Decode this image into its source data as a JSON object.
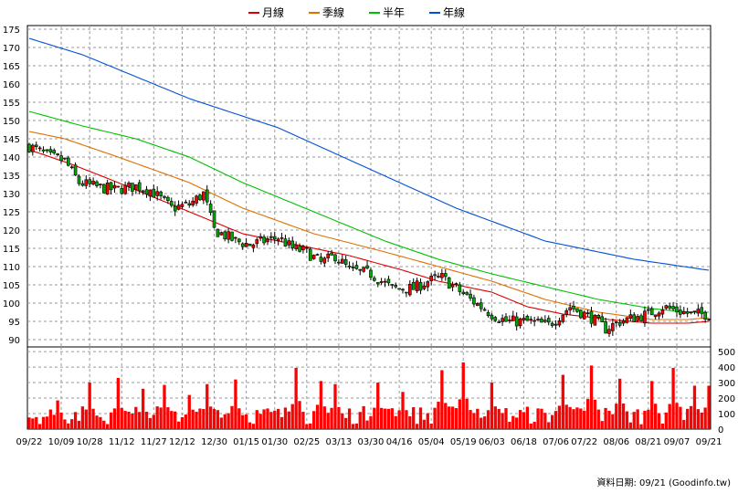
{
  "chart_data": [
    {
      "type": "candlestick",
      "panel": "price",
      "ylim": [
        88,
        176
      ],
      "yticks": [
        90,
        95,
        100,
        105,
        110,
        115,
        120,
        125,
        130,
        135,
        140,
        145,
        150,
        155,
        160,
        165,
        170,
        175
      ],
      "legend": {
        "placement": "top-center",
        "items": [
          {
            "label": "月線",
            "color": "#dd0000"
          },
          {
            "label": "季線",
            "color": "#e07000"
          },
          {
            "label": "半年",
            "color": "#00c000"
          },
          {
            "label": "年線",
            "color": "#0050d8"
          }
        ]
      },
      "series": [
        {
          "name": "月線",
          "color": "#dd0000",
          "points": [
            [
              0,
              142
            ],
            [
              12,
              138
            ],
            [
              25,
              133
            ],
            [
              45,
              125
            ],
            [
              60,
              119
            ],
            [
              75,
              116
            ],
            [
              90,
              113
            ],
            [
              105,
              109
            ],
            [
              115,
              106
            ],
            [
              130,
              103
            ],
            [
              140,
              99
            ],
            [
              150,
              97
            ],
            [
              163,
              95.5
            ],
            [
              175,
              94.5
            ],
            [
              185,
              94.5
            ],
            [
              191,
              95
            ]
          ]
        },
        {
          "name": "季線",
          "color": "#e07000",
          "points": [
            [
              0,
              147
            ],
            [
              10,
              145
            ],
            [
              25,
              140
            ],
            [
              45,
              133
            ],
            [
              60,
              126
            ],
            [
              80,
              119
            ],
            [
              100,
              114
            ],
            [
              115,
              110
            ],
            [
              130,
              106
            ],
            [
              145,
              101
            ],
            [
              160,
              97.5
            ],
            [
              175,
              95.5
            ],
            [
              185,
              95.5
            ],
            [
              191,
              96
            ]
          ]
        },
        {
          "name": "半年",
          "color": "#00c000",
          "points": [
            [
              0,
              152.5
            ],
            [
              15,
              148.5
            ],
            [
              30,
              145
            ],
            [
              45,
              140
            ],
            [
              60,
              133
            ],
            [
              80,
              125
            ],
            [
              100,
              117
            ],
            [
              115,
              112
            ],
            [
              130,
              108
            ],
            [
              145,
              104.5
            ],
            [
              160,
              101
            ],
            [
              175,
              98.5
            ],
            [
              185,
              97.5
            ],
            [
              191,
              97.5
            ]
          ]
        },
        {
          "name": "年線",
          "color": "#0050d8",
          "points": [
            [
              0,
              172.5
            ],
            [
              15,
              168
            ],
            [
              30,
              162
            ],
            [
              45,
              156
            ],
            [
              70,
              148
            ],
            [
              95,
              137
            ],
            [
              120,
              126
            ],
            [
              145,
              117
            ],
            [
              170,
              112
            ],
            [
              191,
              109
            ]
          ]
        }
      ],
      "candles": {
        "color_up": "#ff0000",
        "color_down": "#00aa00",
        "anchors": [
          [
            0,
            143
          ],
          [
            6,
            140
          ],
          [
            10,
            139
          ],
          [
            14,
            133
          ],
          [
            18,
            132
          ],
          [
            24,
            131
          ],
          [
            30,
            132
          ],
          [
            34,
            131
          ],
          [
            40,
            126
          ],
          [
            45,
            127
          ],
          [
            49,
            130
          ],
          [
            52,
            120
          ],
          [
            58,
            117
          ],
          [
            62,
            116
          ],
          [
            66,
            117
          ],
          [
            70,
            118
          ],
          [
            74,
            115
          ],
          [
            78,
            114
          ],
          [
            82,
            111
          ],
          [
            86,
            113
          ],
          [
            90,
            109
          ],
          [
            96,
            108
          ],
          [
            102,
            104
          ],
          [
            108,
            104
          ],
          [
            112,
            106
          ],
          [
            116,
            107
          ],
          [
            120,
            104
          ],
          [
            124,
            101
          ],
          [
            130,
            97
          ],
          [
            134,
            95
          ],
          [
            140,
            95
          ],
          [
            146,
            94
          ],
          [
            152,
            99
          ],
          [
            158,
            96
          ],
          [
            162,
            93
          ],
          [
            166,
            95
          ],
          [
            170,
            96
          ],
          [
            174,
            97
          ],
          [
            178,
            99
          ],
          [
            182,
            98
          ],
          [
            186,
            97
          ],
          [
            191,
            97
          ]
        ]
      },
      "x_labels": [
        "09/22",
        "10/09",
        "10/28",
        "11/12",
        "11/27",
        "12/12",
        "12/30",
        "01/15",
        "01/30",
        "02/25",
        "03/13",
        "03/30",
        "04/16",
        "05/04",
        "05/19",
        "06/03",
        "06/18",
        "07/06",
        "07/22",
        "08/06",
        "08/21",
        "09/07",
        "09/21"
      ]
    },
    {
      "type": "bar",
      "panel": "volume",
      "ylim": [
        0,
        530
      ],
      "yticks": [
        0,
        100,
        200,
        300,
        400,
        500
      ],
      "color": "#ff0000",
      "bar_count": 192,
      "baseline": 125,
      "spikes": [
        [
          8,
          185
        ],
        [
          17,
          300
        ],
        [
          25,
          330
        ],
        [
          32,
          260
        ],
        [
          38,
          285
        ],
        [
          45,
          220
        ],
        [
          50,
          290
        ],
        [
          58,
          320
        ],
        [
          75,
          395
        ],
        [
          82,
          310
        ],
        [
          86,
          290
        ],
        [
          98,
          300
        ],
        [
          105,
          240
        ],
        [
          116,
          380
        ],
        [
          122,
          430
        ],
        [
          130,
          300
        ],
        [
          150,
          350
        ],
        [
          158,
          410
        ],
        [
          166,
          325
        ],
        [
          175,
          310
        ],
        [
          181,
          395
        ],
        [
          187,
          280
        ],
        [
          191,
          280
        ]
      ]
    }
  ],
  "footer": {
    "text": "資料日期: 09/21 (Goodinfo.tw)"
  }
}
